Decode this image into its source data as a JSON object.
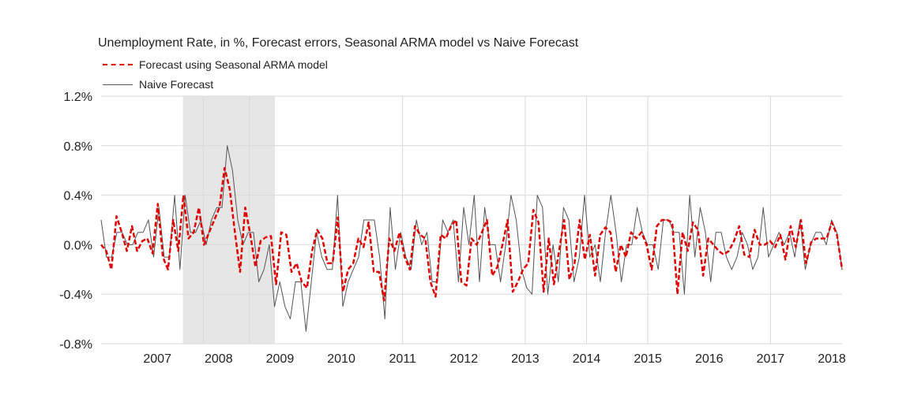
{
  "chart_data": {
    "type": "line",
    "title": "Unemployment Rate, in %, Forecast errors, Seasonal ARMA model vs Naive Forecast",
    "ylim": [
      -0.8,
      1.2
    ],
    "yticks": [
      -0.8,
      -0.4,
      0.0,
      0.4,
      0.8,
      1.2
    ],
    "ytick_labels": [
      "-0.8%",
      "-0.4%",
      "0.0%",
      "0.4%",
      "0.8%",
      "1.2%"
    ],
    "x_start": 2006.583,
    "x_end": 2018.667,
    "year_labels": [
      "2007",
      "2008",
      "2009",
      "2010",
      "2011",
      "2012",
      "2013",
      "2014",
      "2015",
      "2016",
      "2017",
      "2018"
    ],
    "shaded_region": [
      2007.917,
      2009.417
    ],
    "vertical_lines": [
      2008.25,
      2009.0,
      2011.5,
      2013.5,
      2014.5,
      2015.5,
      2017.5
    ],
    "legend_placement": "top-left",
    "series": [
      {
        "name": "Forecast using Seasonal ARMA model",
        "color": "#e30000",
        "style": "dashed",
        "values": [
          0.0,
          -0.05,
          -0.2,
          0.23,
          0.1,
          -0.05,
          0.15,
          -0.05,
          0.03,
          0.05,
          -0.07,
          0.33,
          -0.1,
          -0.2,
          0.2,
          -0.05,
          0.4,
          0.05,
          0.1,
          0.3,
          0.0,
          0.1,
          0.2,
          0.3,
          0.62,
          0.45,
          0.1,
          -0.22,
          0.3,
          0.08,
          -0.18,
          0.03,
          0.06,
          0.07,
          -0.32,
          0.1,
          0.08,
          -0.22,
          -0.15,
          -0.3,
          -0.35,
          -0.05,
          0.12,
          0.05,
          -0.15,
          -0.15,
          0.22,
          -0.38,
          -0.2,
          -0.15,
          0.05,
          -0.02,
          0.18,
          -0.22,
          -0.22,
          -0.45,
          0.05,
          -0.05,
          0.1,
          -0.1,
          -0.2,
          0.15,
          0.08,
          0.05,
          -0.3,
          -0.42,
          0.08,
          0.05,
          0.15,
          0.2,
          -0.3,
          -0.33,
          0.05,
          0.0,
          0.1,
          0.2,
          -0.25,
          -0.18,
          0.0,
          0.2,
          -0.38,
          -0.3,
          -0.2,
          -0.15,
          0.28,
          0.18,
          -0.38,
          0.05,
          -0.32,
          -0.05,
          0.2,
          -0.28,
          -0.15,
          0.2,
          -0.12,
          0.08,
          -0.25,
          0.08,
          0.14,
          0.1,
          -0.22,
          0.0,
          -0.1,
          0.1,
          0.05,
          0.1,
          0.0,
          -0.2,
          0.15,
          0.2,
          0.2,
          0.18,
          -0.4,
          0.1,
          -0.05,
          0.18,
          0.12,
          -0.25,
          0.05,
          0.0,
          -0.05,
          -0.08,
          -0.05,
          0.03,
          0.15,
          -0.08,
          -0.1,
          0.12,
          0.0,
          0.0,
          0.03,
          -0.02,
          0.08,
          -0.12,
          0.15,
          -0.02,
          0.2,
          -0.15,
          0.02,
          0.05,
          0.05,
          0.05,
          0.18,
          0.08,
          -0.2
        ]
      },
      {
        "name": "Naive Forecast",
        "color": "#555555",
        "style": "solid",
        "values": [
          0.2,
          -0.1,
          -0.1,
          0.1,
          0.1,
          0.0,
          0.0,
          0.1,
          0.1,
          0.2,
          -0.1,
          0.3,
          -0.1,
          -0.1,
          0.4,
          -0.2,
          0.4,
          0.1,
          0.1,
          0.2,
          0.0,
          0.2,
          0.3,
          0.3,
          0.8,
          0.6,
          0.2,
          0.0,
          0.1,
          0.1,
          -0.3,
          -0.2,
          0.0,
          -0.5,
          -0.3,
          -0.5,
          -0.6,
          -0.3,
          -0.3,
          -0.7,
          -0.3,
          0.1,
          -0.1,
          -0.2,
          -0.2,
          0.4,
          -0.5,
          -0.3,
          -0.2,
          -0.1,
          0.2,
          0.2,
          0.2,
          -0.1,
          -0.6,
          0.3,
          -0.2,
          0.1,
          -0.1,
          -0.2,
          0.2,
          0.0,
          0.1,
          -0.3,
          -0.3,
          0.2,
          0.1,
          0.2,
          -0.3,
          0.3,
          0.0,
          0.4,
          -0.3,
          0.3,
          0.0,
          0.0,
          -0.3,
          0.0,
          0.4,
          0.2,
          -0.2,
          -0.35,
          -0.4,
          0.4,
          0.3,
          -0.4,
          0.0,
          -0.3,
          0.3,
          0.2,
          -0.3,
          -0.1,
          0.4,
          -0.1,
          0.0,
          -0.3,
          0.1,
          0.4,
          0.1,
          -0.3,
          0.0,
          0.0,
          0.3,
          0.1,
          0.0,
          0.0,
          -0.2,
          0.2,
          0.2,
          0.1,
          0.1,
          -0.4,
          0.4,
          -0.1,
          0.3,
          0.1,
          -0.3,
          0.1,
          0.1,
          -0.1,
          -0.2,
          -0.1,
          0.1,
          0.0,
          -0.2,
          -0.1,
          0.3,
          -0.1,
          0.0,
          0.1,
          0.0,
          0.1,
          -0.1,
          0.2,
          -0.2,
          0.0,
          0.1,
          0.1,
          0.0,
          0.2,
          0.1,
          -0.2
        ]
      }
    ]
  }
}
